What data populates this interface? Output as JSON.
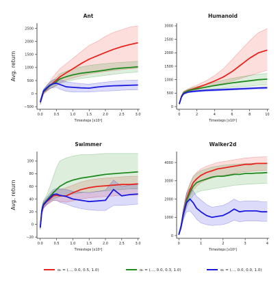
{
  "figure": {
    "ylabel": "Avg. return",
    "legend": [
      {
        "label": "αₜ = (..., 0.0, 0.5, 1.0)",
        "color": "#e8231c"
      },
      {
        "label": "αₜ = (..., 0.0, 0.3, 1.0)",
        "color": "#1e8a1e"
      },
      {
        "label": "αₜ = (..., 0.0, 0.0, 1.0)",
        "color": "#1717e0"
      }
    ]
  },
  "chart_data": [
    {
      "type": "line",
      "title": "Ant",
      "xlabel": "Timesteps [x10⁶]",
      "ylabel": "Avg. return",
      "xlim": [
        -0.1,
        3.05
      ],
      "ylim": [
        -600,
        2700
      ],
      "xticks": [
        0.0,
        0.5,
        1.0,
        1.5,
        2.0,
        2.5,
        3.0
      ],
      "xtick_labels": [
        "0.0",
        "0.5",
        "1.0",
        "1.5",
        "2.0",
        "2.5",
        "3.0"
      ],
      "yticks": [
        -500,
        0,
        500,
        1000,
        1500,
        2000,
        2500
      ],
      "x": [
        0.0,
        0.1,
        0.2,
        0.3,
        0.4,
        0.5,
        0.6,
        0.8,
        1.0,
        1.25,
        1.5,
        1.75,
        2.0,
        2.25,
        2.5,
        2.75,
        3.0
      ],
      "series": [
        {
          "color": "#e8231c",
          "values": [
            -330,
            50,
            180,
            300,
            420,
            520,
            640,
            800,
            950,
            1150,
            1320,
            1450,
            1580,
            1700,
            1800,
            1880,
            1950
          ],
          "lower": [
            -420,
            -30,
            80,
            180,
            260,
            330,
            420,
            520,
            600,
            680,
            750,
            800,
            850,
            880,
            920,
            950,
            980
          ],
          "upper": [
            -240,
            130,
            300,
            450,
            650,
            800,
            950,
            1150,
            1350,
            1600,
            1850,
            2000,
            2200,
            2350,
            2450,
            2550,
            2600
          ]
        },
        {
          "color": "#1e8a1e",
          "values": [
            -330,
            60,
            200,
            300,
            380,
            460,
            560,
            650,
            720,
            780,
            820,
            860,
            900,
            950,
            980,
            1000,
            1030
          ],
          "lower": [
            -410,
            -10,
            110,
            190,
            250,
            310,
            380,
            460,
            520,
            580,
            620,
            660,
            700,
            740,
            780,
            800,
            830
          ],
          "upper": [
            -250,
            140,
            290,
            410,
            520,
            620,
            760,
            860,
            950,
            1020,
            1080,
            1120,
            1150,
            1180,
            1200,
            1220,
            1240
          ]
        },
        {
          "color": "#1717e0",
          "values": [
            -330,
            100,
            220,
            330,
            380,
            400,
            350,
            260,
            240,
            220,
            210,
            250,
            280,
            300,
            310,
            320,
            330
          ],
          "lower": [
            -420,
            30,
            120,
            200,
            230,
            240,
            170,
            90,
            60,
            60,
            60,
            80,
            100,
            110,
            130,
            140,
            150
          ],
          "upper": [
            -240,
            170,
            320,
            460,
            530,
            560,
            540,
            450,
            420,
            380,
            360,
            400,
            440,
            470,
            500,
            510,
            520
          ]
        }
      ]
    },
    {
      "type": "line",
      "title": "Humanoid",
      "xlabel": "Timesteps [x10⁶]",
      "ylabel": "",
      "xlim": [
        -0.3,
        10.2
      ],
      "ylim": [
        -100,
        3100
      ],
      "xticks": [
        0,
        2,
        4,
        6,
        8,
        10
      ],
      "xtick_labels": [
        "0",
        "2",
        "4",
        "6",
        "8",
        "10"
      ],
      "yticks": [
        0,
        500,
        1000,
        1500,
        2000,
        2500,
        3000
      ],
      "x": [
        0.0,
        0.25,
        0.5,
        1,
        1.5,
        2,
        2.5,
        3,
        4,
        5,
        6,
        7,
        8,
        9,
        10
      ],
      "series": [
        {
          "color": "#e8231c",
          "values": [
            100,
            380,
            520,
            600,
            650,
            700,
            760,
            820,
            950,
            1100,
            1300,
            1550,
            1800,
            2000,
            2100
          ],
          "lower": [
            60,
            330,
            470,
            550,
            590,
            630,
            670,
            710,
            780,
            860,
            950,
            1050,
            1150,
            1250,
            1350
          ],
          "upper": [
            140,
            430,
            570,
            660,
            730,
            800,
            880,
            950,
            1150,
            1400,
            1750,
            2100,
            2450,
            2750,
            2900
          ]
        },
        {
          "color": "#1e8a1e",
          "values": [
            100,
            370,
            510,
            590,
            630,
            660,
            690,
            720,
            780,
            830,
            880,
            920,
            960,
            1000,
            1020
          ],
          "lower": [
            60,
            330,
            460,
            540,
            570,
            590,
            610,
            630,
            660,
            690,
            720,
            740,
            760,
            790,
            810
          ],
          "upper": [
            140,
            410,
            560,
            650,
            700,
            740,
            780,
            820,
            900,
            980,
            1050,
            1110,
            1160,
            1200,
            1230
          ]
        },
        {
          "color": "#1717e0",
          "values": [
            100,
            360,
            480,
            540,
            560,
            575,
            590,
            600,
            615,
            630,
            645,
            660,
            675,
            690,
            700
          ],
          "lower": [
            70,
            330,
            450,
            510,
            530,
            545,
            555,
            565,
            580,
            595,
            610,
            625,
            640,
            655,
            665
          ],
          "upper": [
            130,
            390,
            510,
            570,
            590,
            605,
            620,
            635,
            650,
            665,
            680,
            695,
            710,
            725,
            735
          ]
        }
      ]
    },
    {
      "type": "line",
      "title": "Swimmer",
      "xlabel": "Timesteps [x10⁶]",
      "ylabel": "Avg. return",
      "xlim": [
        -0.1,
        3.05
      ],
      "ylim": [
        -22,
        115
      ],
      "xticks": [
        0.0,
        0.5,
        1.0,
        1.5,
        2.0,
        2.5,
        3.0
      ],
      "xtick_labels": [
        "0.0",
        "0.5",
        "1.0",
        "1.5",
        "2.0",
        "2.5",
        "3.0"
      ],
      "yticks": [
        -20,
        0,
        20,
        40,
        60,
        80,
        100
      ],
      "x": [
        0.0,
        0.05,
        0.1,
        0.2,
        0.3,
        0.4,
        0.5,
        0.6,
        0.8,
        1.0,
        1.25,
        1.5,
        1.75,
        2.0,
        2.25,
        2.5,
        2.75,
        3.0
      ],
      "series": [
        {
          "color": "#e8231c",
          "values": [
            -5,
            20,
            30,
            36,
            40,
            45,
            46,
            45,
            45,
            50,
            55,
            58,
            60,
            61,
            62,
            63,
            63,
            64
          ],
          "lower": [
            -8,
            15,
            25,
            31,
            34,
            38,
            38,
            36,
            35,
            37,
            40,
            42,
            43,
            44,
            45,
            46,
            46,
            46
          ],
          "upper": [
            -2,
            25,
            35,
            41,
            46,
            52,
            55,
            55,
            58,
            62,
            67,
            70,
            72,
            73,
            74,
            75,
            76,
            76
          ]
        },
        {
          "color": "#1e8a1e",
          "values": [
            -5,
            22,
            32,
            38,
            44,
            50,
            55,
            60,
            66,
            70,
            73,
            75,
            77,
            79,
            80,
            81,
            82,
            83
          ],
          "lower": [
            -8,
            16,
            26,
            32,
            37,
            40,
            42,
            44,
            46,
            48,
            50,
            51,
            52,
            53,
            54,
            55,
            56,
            56
          ],
          "upper": [
            -2,
            28,
            38,
            46,
            60,
            75,
            90,
            100,
            105,
            108,
            110,
            110,
            111,
            112,
            112,
            112,
            112,
            112
          ]
        },
        {
          "color": "#1717e0",
          "values": [
            -5,
            22,
            31,
            37,
            42,
            47,
            48,
            46,
            44,
            40,
            38,
            36,
            37,
            38,
            55,
            45,
            47,
            48
          ],
          "lower": [
            -8,
            17,
            26,
            31,
            35,
            38,
            38,
            35,
            32,
            28,
            25,
            23,
            22,
            22,
            30,
            30,
            31,
            32
          ],
          "upper": [
            -2,
            27,
            36,
            43,
            49,
            55,
            57,
            56,
            55,
            52,
            51,
            50,
            52,
            54,
            70,
            60,
            62,
            63
          ]
        }
      ]
    },
    {
      "type": "line",
      "title": "Walker2d",
      "xlabel": "Timesteps [x10⁶]",
      "ylabel": "",
      "xlim": [
        -0.1,
        4.08
      ],
      "ylim": [
        -150,
        4600
      ],
      "xticks": [
        0,
        1,
        2,
        3,
        4
      ],
      "xtick_labels": [
        "0",
        "1",
        "2",
        "3",
        "4"
      ],
      "yticks": [
        0,
        1000,
        2000,
        3000,
        4000
      ],
      "x": [
        0.0,
        0.1,
        0.2,
        0.35,
        0.5,
        0.65,
        0.8,
        1.0,
        1.25,
        1.5,
        1.75,
        2.0,
        2.25,
        2.5,
        2.75,
        3.0,
        3.25,
        3.5,
        3.75,
        4.0
      ],
      "series": [
        {
          "color": "#e8231c",
          "values": [
            50,
            500,
            1200,
            2000,
            2500,
            2900,
            3100,
            3300,
            3450,
            3550,
            3650,
            3700,
            3750,
            3800,
            3850,
            3900,
            3900,
            3950,
            3950,
            3950
          ],
          "lower": [
            20,
            350,
            950,
            1650,
            2150,
            2500,
            2700,
            2900,
            3050,
            3150,
            3250,
            3300,
            3350,
            3400,
            3450,
            3500,
            3520,
            3550,
            3560,
            3570
          ],
          "upper": [
            80,
            650,
            1450,
            2350,
            2850,
            3250,
            3450,
            3650,
            3800,
            3900,
            4000,
            4050,
            4100,
            4150,
            4200,
            4250,
            4270,
            4300,
            4310,
            4320
          ]
        },
        {
          "color": "#1e8a1e",
          "values": [
            50,
            500,
            1150,
            1900,
            2350,
            2700,
            2900,
            3000,
            3100,
            3200,
            3250,
            3250,
            3300,
            3350,
            3350,
            3400,
            3400,
            3420,
            3430,
            3450
          ],
          "lower": [
            20,
            350,
            900,
            1500,
            1900,
            2200,
            2350,
            2450,
            2500,
            2550,
            2600,
            2650,
            2700,
            2750,
            2780,
            2800,
            2820,
            2840,
            2850,
            2860
          ],
          "upper": [
            80,
            650,
            1400,
            2300,
            2800,
            3200,
            3400,
            3550,
            3650,
            3750,
            3800,
            3850,
            3880,
            3900,
            3920,
            3940,
            3950,
            3960,
            3970,
            3980
          ]
        },
        {
          "color": "#1717e0",
          "values": [
            50,
            500,
            1150,
            1800,
            2000,
            1800,
            1500,
            1300,
            1100,
            1000,
            1050,
            1100,
            1250,
            1450,
            1300,
            1350,
            1350,
            1350,
            1300,
            1300
          ],
          "lower": [
            20,
            350,
            850,
            1300,
            1350,
            1150,
            900,
            700,
            600,
            550,
            580,
            600,
            700,
            850,
            750,
            800,
            800,
            800,
            780,
            780
          ],
          "upper": [
            80,
            650,
            1450,
            2300,
            2600,
            2450,
            2150,
            1950,
            1700,
            1550,
            1600,
            1650,
            1800,
            2000,
            1850,
            1900,
            1900,
            1900,
            1850,
            1850
          ]
        }
      ]
    }
  ]
}
